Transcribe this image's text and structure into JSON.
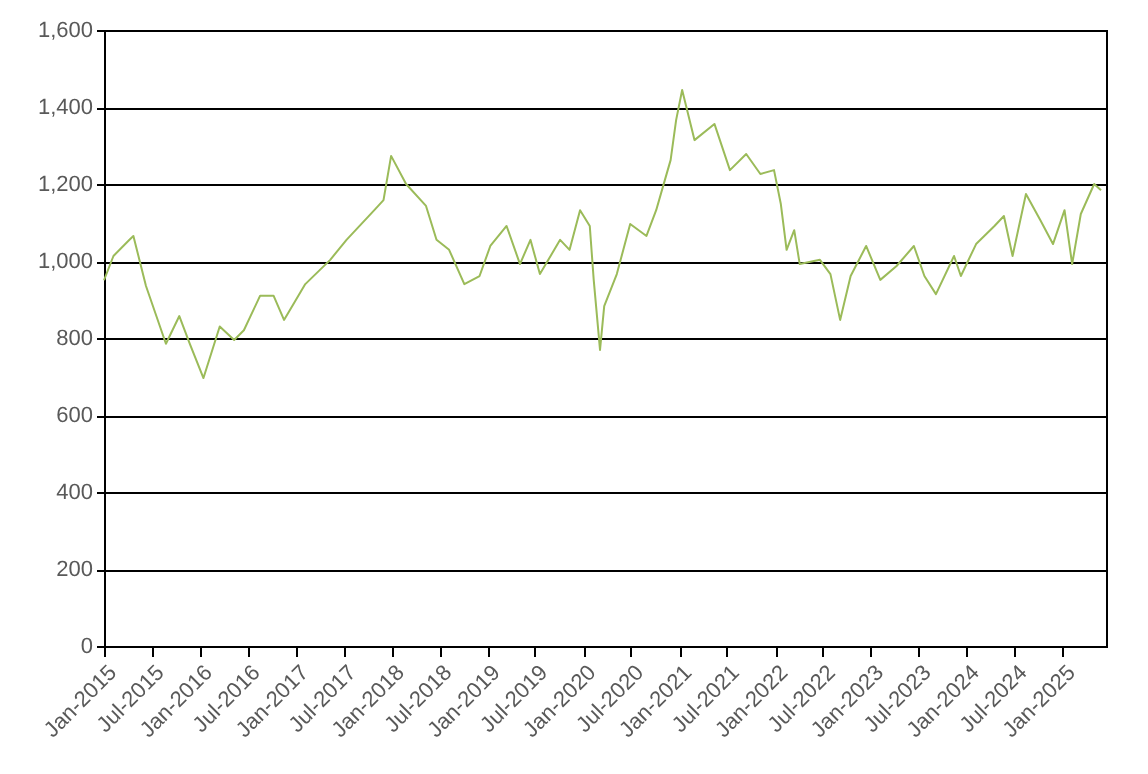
{
  "chart_data": {
    "type": "line",
    "grid": "y",
    "xlim": [
      "2015-01-01",
      "2025-06-15"
    ],
    "xticks": [
      {
        "value": "2015-01",
        "label": "Jan-2015"
      },
      {
        "value": "2015-07",
        "label": "Jul-2015"
      },
      {
        "value": "2016-01",
        "label": "Jan-2016"
      },
      {
        "value": "2016-07",
        "label": "Jul-2016"
      },
      {
        "value": "2017-01",
        "label": "Jan-2017"
      },
      {
        "value": "2017-07",
        "label": "Jul-2017"
      },
      {
        "value": "2018-01",
        "label": "Jan-2018"
      },
      {
        "value": "2018-07",
        "label": "Jul-2018"
      },
      {
        "value": "2019-01",
        "label": "Jan-2019"
      },
      {
        "value": "2019-07",
        "label": "Jul-2019"
      },
      {
        "value": "2020-01",
        "label": "Jan-2020"
      },
      {
        "value": "2020-07",
        "label": "Jul-2020"
      },
      {
        "value": "2021-01",
        "label": "Jan-2021"
      },
      {
        "value": "2021-07",
        "label": "Jul-2021"
      },
      {
        "value": "2022-01",
        "label": "Jan-2022"
      },
      {
        "value": "2022-07",
        "label": "Jul-2022"
      },
      {
        "value": "2023-01",
        "label": "Jan-2023"
      },
      {
        "value": "2023-07",
        "label": "Jul-2023"
      },
      {
        "value": "2024-01",
        "label": "Jan-2024"
      },
      {
        "value": "2024-07",
        "label": "Jul-2024"
      },
      {
        "value": "2025-01",
        "label": "Jan-2025"
      }
    ],
    "ylim": [
      0,
      1600
    ],
    "yticks": [
      0,
      200,
      400,
      600,
      800,
      {
        "value": 1000,
        "label": "1,000"
      },
      {
        "value": 1200,
        "label": "1,200"
      },
      {
        "value": 1400,
        "label": "1,400"
      },
      {
        "value": 1600,
        "label": "1,600"
      }
    ],
    "x": [
      "2015-01-01",
      "2015-02-06",
      "2015-04-08",
      "2015-04-23",
      "2015-06-10",
      "2015-08-25",
      "2015-10-15",
      "2015-11-24",
      "2016-01-15",
      "2016-03-17",
      "2016-05-11",
      "2016-06-17",
      "2016-08-18",
      "2016-10-08",
      "2016-11-17",
      "2017-02-06",
      "2017-05-12",
      "2017-07-13",
      "2017-10-27",
      "2017-12-01",
      "2017-12-30",
      "2018-02-25",
      "2018-05-12",
      "2018-06-21",
      "2018-08-08",
      "2018-10-05",
      "2018-12-02",
      "2019-01-12",
      "2019-03-15",
      "2019-05-05",
      "2019-06-14",
      "2019-07-20",
      "2019-10-05",
      "2019-11-10",
      "2019-12-20",
      "2020-01-26",
      "2020-02-10",
      "2020-03-05",
      "2020-03-21",
      "2020-05-08",
      "2020-06-28",
      "2020-08-29",
      "2020-10-05",
      "2020-11-07",
      "2020-11-29",
      "2020-12-20",
      "2021-01-12",
      "2021-02-28",
      "2021-05-15",
      "2021-07-13",
      "2021-09-13",
      "2021-11-06",
      "2021-12-28",
      "2022-01-23",
      "2022-02-14",
      "2022-03-15",
      "2022-04-05",
      "2022-06-21",
      "2022-07-31",
      "2022-09-06",
      "2022-10-16",
      "2022-12-14",
      "2023-02-06",
      "2023-04-09",
      "2023-06-14",
      "2023-07-24",
      "2023-09-06",
      "2023-11-14",
      "2023-12-10",
      "2024-02-06",
      "2024-04-16",
      "2024-05-22",
      "2024-06-24",
      "2024-08-14",
      "2024-10-08",
      "2024-11-25",
      "2025-01-08",
      "2025-02-06",
      "2025-03-11",
      "2025-05-01",
      "2025-05-27"
    ],
    "series": [
      {
        "color": "#9bbb59",
        "line_style": "solid",
        "values": [
          950,
          1013,
          1055,
          1065,
          935,
          785,
          857,
          785,
          696,
          830,
          795,
          820,
          910,
          910,
          847,
          940,
          1003,
          1055,
          1132,
          1158,
          1273,
          1200,
          1143,
          1055,
          1029,
          940,
          961,
          1039,
          1091,
          992,
          1055,
          966,
          1055,
          1029,
          1132,
          1091,
          951,
          769,
          883,
          966,
          1096,
          1065,
          1132,
          1210,
          1262,
          1366,
          1444,
          1314,
          1356,
          1236,
          1278,
          1226,
          1236,
          1148,
          1029,
          1080,
          992,
          1003,
          966,
          847,
          961,
          1039,
          951,
          987,
          1039,
          961,
          914,
          1013,
          961,
          1044,
          1091,
          1117,
          1013,
          1174,
          1106,
          1044,
          1132,
          992,
          1122,
          1200,
          1184
        ]
      }
    ]
  }
}
